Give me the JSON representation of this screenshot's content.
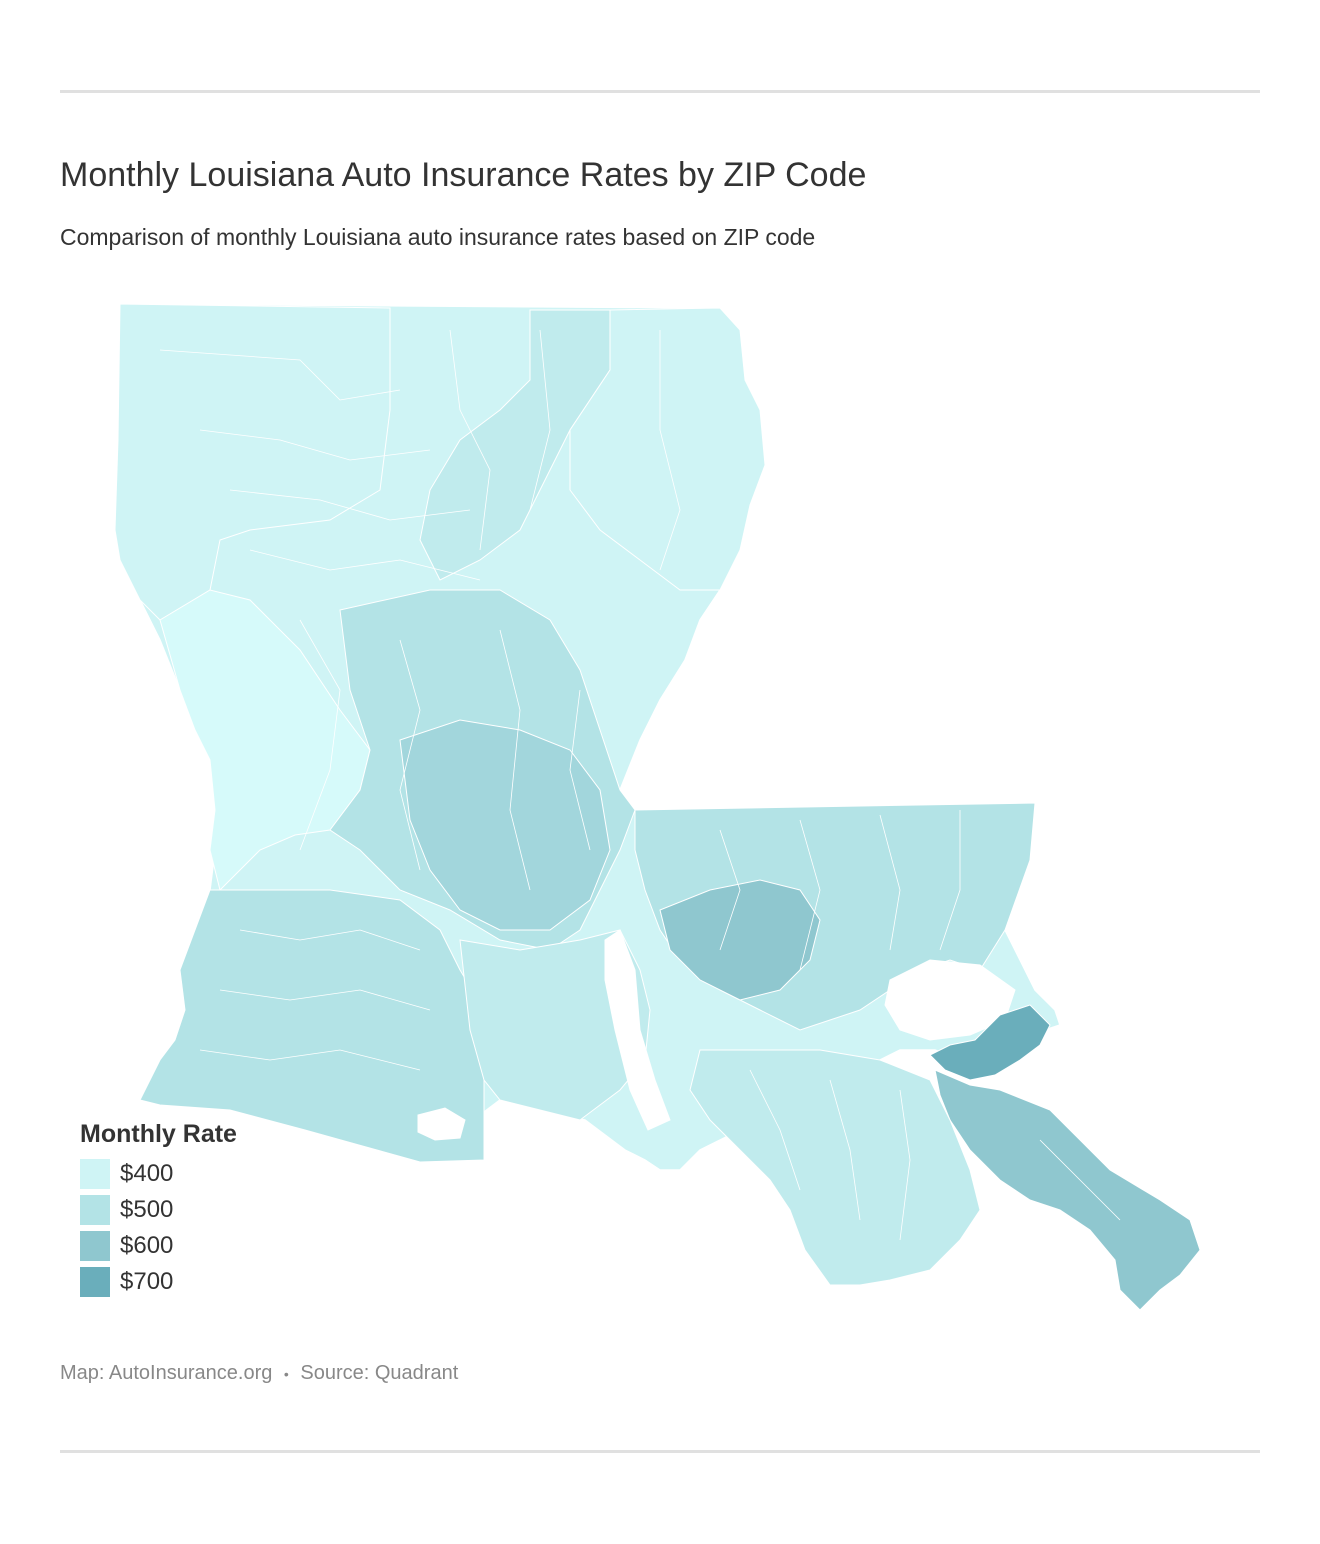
{
  "header": {
    "title": "Monthly Louisiana Auto Insurance Rates by ZIP Code",
    "subtitle": "Comparison of monthly Louisiana auto insurance rates based on ZIP code"
  },
  "legend": {
    "title": "Monthly Rate",
    "items": [
      {
        "label": "$400",
        "color": "#cff4f5"
      },
      {
        "label": "$500",
        "color": "#b3e3e6"
      },
      {
        "label": "$600",
        "color": "#8fc7cf"
      },
      {
        "label": "$700",
        "color": "#6aaebb"
      }
    ]
  },
  "map": {
    "region": "Louisiana",
    "colors": {
      "lightest": "#d6fafa",
      "level400": "#cff4f5",
      "level450": "#c0ebed",
      "level500": "#b3e3e6",
      "level550": "#a2d6dc",
      "level600": "#8fc7cf",
      "level700": "#6aaebb",
      "border": "#ffffff"
    }
  },
  "footer": {
    "map_credit": "Map: AutoInsurance.org",
    "separator": "•",
    "source": "Source: Quadrant"
  }
}
